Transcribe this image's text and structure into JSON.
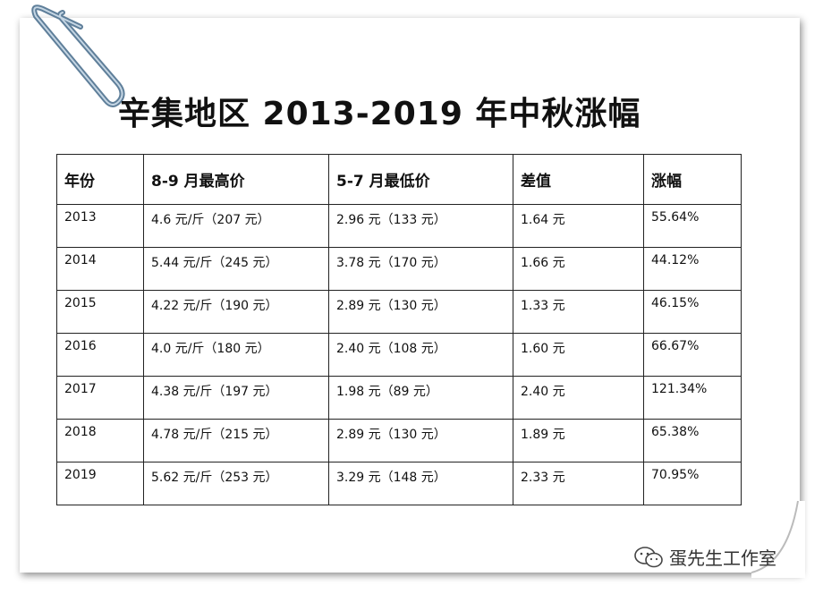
{
  "header": {
    "title": "辛集地区 2013-2019 年中秋涨幅"
  },
  "table": {
    "columns": [
      "年份",
      "8-9 月最高价",
      "5-7 月最低价",
      "差值",
      "涨幅"
    ],
    "rows": [
      [
        "2013",
        "4.6 元/斤（207 元）",
        "2.96 元（133 元）",
        "1.64 元",
        "55.64%"
      ],
      [
        "2014",
        "5.44 元/斤（245 元）",
        "3.78 元（170 元）",
        "1.66 元",
        "44.12%"
      ],
      [
        "2015",
        "4.22 元/斤（190 元）",
        "2.89 元（130 元）",
        "1.33 元",
        "46.15%"
      ],
      [
        "2016",
        "4.0 元/斤（180 元）",
        "2.40 元（108 元）",
        "1.60 元",
        "66.67%"
      ],
      [
        "2017",
        "4.38 元/斤（197 元）",
        "1.98 元（89 元）",
        "2.40 元",
        "121.34%"
      ],
      [
        "2018",
        "4.78 元/斤（215 元）",
        "2.89 元（130 元）",
        "1.89 元",
        "65.38%"
      ],
      [
        "2019",
        "5.62 元/斤（253 元）",
        "3.29 元（148 元）",
        "2.33 元",
        "70.95%"
      ]
    ]
  },
  "watermark": {
    "text": "蛋先生工作室"
  }
}
